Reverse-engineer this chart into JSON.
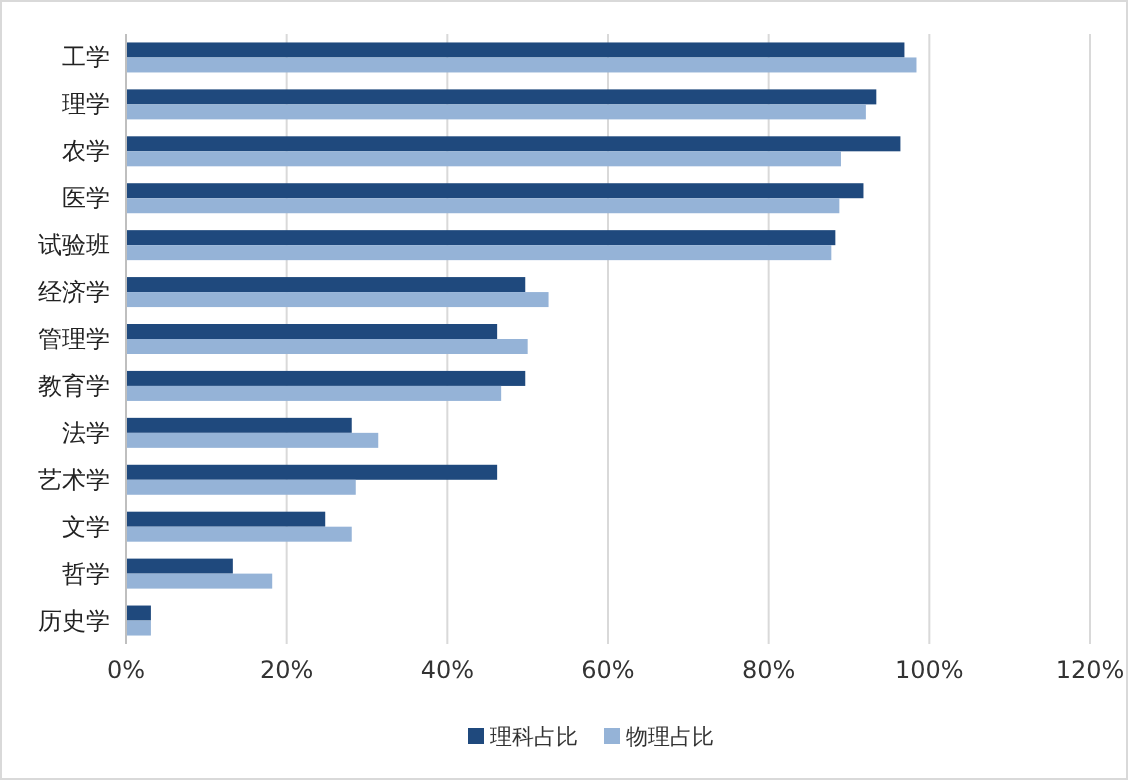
{
  "chart_data": {
    "type": "bar",
    "orientation": "horizontal",
    "categories": [
      "工学",
      "理学",
      "农学",
      "医学",
      "试验班",
      "经济学",
      "管理学",
      "教育学",
      "法学",
      "艺术学",
      "文学",
      "哲学",
      "历史学"
    ],
    "series": [
      {
        "name": "理科占比",
        "color": "#1f497d",
        "values": [
          96.9,
          93.4,
          96.4,
          91.8,
          88.3,
          49.7,
          46.2,
          49.7,
          28.1,
          46.2,
          24.8,
          13.3,
          3.1
        ]
      },
      {
        "name": "物理占比",
        "color": "#95b3d7",
        "values": [
          98.4,
          92.1,
          89.0,
          88.8,
          87.8,
          52.6,
          50.0,
          46.7,
          31.4,
          28.6,
          28.1,
          18.2,
          3.1
        ]
      }
    ],
    "xlim": [
      0,
      120
    ],
    "xticks": [
      {
        "value": 0,
        "label": "0%"
      },
      {
        "value": 20,
        "label": "20%"
      },
      {
        "value": 40,
        "label": "40%"
      },
      {
        "value": 60,
        "label": "60%"
      },
      {
        "value": 80,
        "label": "80%"
      },
      {
        "value": 100,
        "label": "100%"
      },
      {
        "value": 120,
        "label": "120%"
      }
    ],
    "grid": "x",
    "legend": "bottom"
  }
}
